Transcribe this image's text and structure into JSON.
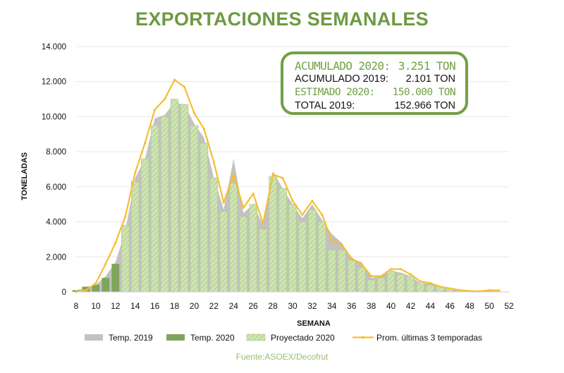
{
  "title": "EXPORTACIONES SEMANALES",
  "source": "Fuente:ASOEX/Decofrut",
  "summary": [
    {
      "label": "ACUMULADO 2020:",
      "value": "3.251 TON"
    },
    {
      "label": "ACUMULADO 2019:",
      "value": "2.101 TON"
    },
    {
      "label": "ESTIMADO 2020:",
      "value": "150.000 TON"
    },
    {
      "label": "TOTAL 2019:",
      "value": "152.966 TON"
    }
  ],
  "colors": {
    "temp2019": "#c2c2c2",
    "temp2020": "#7ea55a",
    "projected": "#cfe3b3",
    "projected_hatch": "#a9c987",
    "average": "#f6bd35",
    "title": "#6d9a42",
    "grid": "#e6e6e6"
  },
  "chart_data": {
    "type": "bar",
    "xlabel": "SEMANA",
    "ylabel": "TONELADAS",
    "ylim": [
      0,
      14000
    ],
    "yticks": [
      "0",
      "2.000",
      "4.000",
      "6.000",
      "8.000",
      "10.000",
      "12.000",
      "14.000"
    ],
    "ytick_values": [
      0,
      2000,
      4000,
      6000,
      8000,
      10000,
      12000,
      14000
    ],
    "xlim": [
      8,
      52
    ],
    "xticks": [
      8,
      10,
      12,
      14,
      16,
      18,
      20,
      22,
      24,
      26,
      28,
      30,
      32,
      34,
      36,
      38,
      40,
      42,
      44,
      46,
      48,
      50,
      52
    ],
    "legend_position": "bottom",
    "series": [
      {
        "name": "Temp. 2019",
        "kind": "area",
        "x": [
          8,
          9,
          10,
          11,
          12,
          13,
          14,
          15,
          16,
          17,
          18,
          19,
          20,
          21,
          22,
          23,
          24,
          25,
          26,
          27,
          28,
          29,
          30,
          31,
          32,
          33,
          34,
          35,
          36,
          37,
          38,
          39,
          40,
          41,
          42,
          43,
          44,
          45,
          46,
          47,
          48,
          49,
          50,
          51,
          52
        ],
        "values": [
          100,
          200,
          400,
          900,
          1700,
          3500,
          6500,
          7600,
          9900,
          10100,
          10800,
          10700,
          9600,
          8800,
          6500,
          4700,
          7600,
          4500,
          5000,
          3800,
          6900,
          5900,
          5000,
          4200,
          5000,
          4100,
          3300,
          2800,
          1900,
          1700,
          800,
          900,
          1200,
          1100,
          900,
          500,
          500,
          300,
          200,
          100,
          100,
          50,
          50,
          30,
          0
        ]
      },
      {
        "name": "Temp. 2020",
        "kind": "bar",
        "x": [
          8,
          9,
          10,
          11,
          12
        ],
        "values": [
          100,
          300,
          400,
          800,
          1600
        ]
      },
      {
        "name": "Proyectado 2020",
        "kind": "bar",
        "x": [
          13,
          14,
          15,
          16,
          17,
          18,
          19,
          20,
          21,
          22,
          23,
          24,
          25,
          26,
          27,
          28,
          29,
          30,
          31,
          32,
          33,
          34,
          35,
          36,
          37,
          38,
          39,
          40,
          41,
          42,
          43,
          44,
          45,
          46,
          47
        ],
        "values": [
          3800,
          6300,
          7600,
          9500,
          10000,
          11000,
          10700,
          9500,
          8500,
          6500,
          4600,
          6200,
          4300,
          5000,
          3600,
          6600,
          5900,
          5000,
          4000,
          4700,
          4000,
          2400,
          2400,
          1800,
          1400,
          700,
          800,
          1200,
          1000,
          900,
          500,
          400,
          300,
          200,
          100
        ]
      },
      {
        "name": "Prom. últimas 3 temporadas",
        "kind": "line",
        "x": [
          8,
          9,
          10,
          11,
          12,
          13,
          14,
          15,
          16,
          17,
          18,
          19,
          20,
          21,
          22,
          23,
          24,
          25,
          26,
          27,
          28,
          29,
          30,
          31,
          32,
          33,
          34,
          35,
          36,
          37,
          38,
          39,
          40,
          41,
          42,
          43,
          44,
          45,
          46,
          47,
          48,
          49,
          50,
          51
        ],
        "values": [
          0,
          100,
          500,
          1600,
          2800,
          4300,
          6800,
          8500,
          10400,
          11000,
          12100,
          11700,
          10200,
          9300,
          7400,
          5100,
          6700,
          4800,
          5600,
          3900,
          6700,
          6500,
          5200,
          4400,
          5200,
          4400,
          2900,
          2700,
          1900,
          1600,
          900,
          900,
          1300,
          1300,
          1000,
          600,
          500,
          300,
          200,
          100,
          50,
          30,
          100,
          80
        ]
      }
    ]
  }
}
